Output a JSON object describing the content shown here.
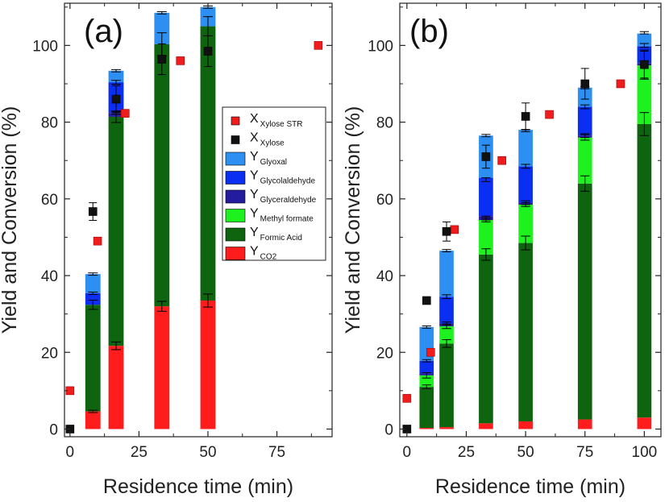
{
  "chart_data": [
    {
      "type": "bar",
      "panel_label": "(a)",
      "xlabel": "Residence time (min)",
      "ylabel": "Yield and Conversion (%)",
      "xlim": [
        -2,
        95
      ],
      "ylim": [
        -2,
        111
      ],
      "xticks": [
        0,
        25,
        50,
        75
      ],
      "yticks": [
        0,
        20,
        40,
        60,
        80,
        100
      ],
      "bar_width": 5.5,
      "stack_order": [
        "Y Formic Acid",
        "Y Methyl formate",
        "Y Glyceraldehyde",
        "Y Glycolaldehyde",
        "Y Glyoxal"
      ],
      "bars": [
        {
          "x": 8.3,
          "CO2": 4.6,
          "segments": [
            27.8,
            0,
            0,
            3.0,
            5.0
          ],
          "errors": [
            {
              "y": 4.6,
              "err": 0.3
            },
            {
              "y": 32.4,
              "err": 1.2
            },
            {
              "y": 35.4,
              "err": 0.3
            },
            {
              "y": 40.4,
              "err": 0.3
            }
          ]
        },
        {
          "x": 16.7,
          "CO2": 21.7,
          "segments": [
            59.7,
            0,
            1.0,
            8.0,
            3.0
          ],
          "errors": [
            {
              "y": 21.7,
              "err": 1.0
            },
            {
              "y": 81.4,
              "err": 1.5
            },
            {
              "y": 82.4,
              "err": 0.3
            },
            {
              "y": 90.4,
              "err": 0.5
            },
            {
              "y": 93.4,
              "err": 0.3
            }
          ]
        },
        {
          "x": 33.3,
          "CO2": 32.0,
          "segments": [
            68.3,
            0,
            0,
            0,
            8.2
          ],
          "errors": [
            {
              "y": 32.0,
              "err": 1.3
            },
            {
              "y": 100.3,
              "err": 3.0
            },
            {
              "y": 108.5,
              "err": 0.3
            }
          ]
        },
        {
          "x": 50.0,
          "CO2": 33.5,
          "segments": [
            71.5,
            0,
            0,
            0,
            5.0
          ],
          "errors": [
            {
              "y": 33.5,
              "err": 1.7
            },
            {
              "y": 105.0,
              "err": 2.5
            },
            {
              "y": 110.0,
              "err": 0.3
            }
          ]
        }
      ],
      "series": [
        {
          "name": "X Xylose STR",
          "marker": "square",
          "color": "#ee1c1c",
          "points": [
            {
              "x": 0,
              "y": 10,
              "err": 0
            },
            {
              "x": 10,
              "y": 49,
              "err": 0
            },
            {
              "x": 20,
              "y": 82.3,
              "err": 0
            },
            {
              "x": 40,
              "y": 96,
              "err": 0
            },
            {
              "x": 90,
              "y": 100,
              "err": 0
            }
          ]
        },
        {
          "name": "X Xylose",
          "marker": "square",
          "color": "#111111",
          "points": [
            {
              "x": 0,
              "y": 0,
              "err": 0
            },
            {
              "x": 8.3,
              "y": 56.7,
              "err": 2.3
            },
            {
              "x": 16.7,
              "y": 86,
              "err": 3.5
            },
            {
              "x": 33.3,
              "y": 96.4,
              "err": 4.0
            },
            {
              "x": 50,
              "y": 98.5,
              "err": 4.0
            }
          ]
        }
      ]
    },
    {
      "type": "bar",
      "panel_label": "(b)",
      "xlabel": "Residence time (min)",
      "ylabel": "Yield and Conversion (%)",
      "xlim": [
        -3,
        107
      ],
      "ylim": [
        -2,
        111
      ],
      "xticks": [
        0,
        25,
        50,
        75,
        100
      ],
      "yticks": [
        0,
        20,
        40,
        60,
        80,
        100
      ],
      "bar_width": 6,
      "stack_order": [
        "Y Formic Acid",
        "Y Methyl formate",
        "Y Glyceraldehyde",
        "Y Glycolaldehyde",
        "Y Glyoxal"
      ],
      "bars": [
        {
          "x": 8.3,
          "CO2": 0.3,
          "segments": [
            10.7,
            3.0,
            0.5,
            3.3,
            8.8
          ],
          "errors": [
            {
              "y": 11.0,
              "err": 0.5
            },
            {
              "y": 14.0,
              "err": 0.7
            },
            {
              "y": 17.8,
              "err": 0.3
            },
            {
              "y": 26.6,
              "err": 0.3
            }
          ]
        },
        {
          "x": 16.7,
          "CO2": 0.5,
          "segments": [
            21.8,
            4.5,
            0.7,
            7.0,
            12.0
          ],
          "errors": [
            {
              "y": 22.3,
              "err": 1.0
            },
            {
              "y": 26.8,
              "err": 0.6
            },
            {
              "y": 27.5,
              "err": 0.4
            },
            {
              "y": 34.5,
              "err": 0.5
            },
            {
              "y": 46.5,
              "err": 0.3
            }
          ]
        },
        {
          "x": 33.3,
          "CO2": 1.5,
          "segments": [
            44.0,
            9.0,
            1.0,
            10.0,
            11.0
          ],
          "errors": [
            {
              "y": 45.5,
              "err": 1.5
            },
            {
              "y": 54.5,
              "err": 0.5
            },
            {
              "y": 55.0,
              "err": 0.5
            },
            {
              "y": 65.0,
              "err": 0.5
            },
            {
              "y": 76.5,
              "err": 0.3
            }
          ]
        },
        {
          "x": 50.0,
          "CO2": 2.0,
          "segments": [
            46.5,
            10.0,
            0.5,
            9.5,
            9.5
          ],
          "errors": [
            {
              "y": 48.5,
              "err": 1.8
            },
            {
              "y": 58.5,
              "err": 0.5
            },
            {
              "y": 59.0,
              "err": 0.5
            },
            {
              "y": 68.5,
              "err": 0.5
            },
            {
              "y": 77.8,
              "err": 0.3
            }
          ]
        },
        {
          "x": 75.0,
          "CO2": 2.5,
          "segments": [
            61.5,
            12.0,
            0.5,
            7.5,
            5.0
          ],
          "errors": [
            {
              "y": 64.0,
              "err": 2.0
            },
            {
              "y": 76.0,
              "err": 0.7
            },
            {
              "y": 76.5,
              "err": 0.5
            },
            {
              "y": 84.0,
              "err": 0.5
            },
            {
              "y": 89.0,
              "err": 0.3
            }
          ]
        },
        {
          "x": 100.0,
          "CO2": 3.0,
          "segments": [
            76.5,
            15.3,
            0.5,
            4.5,
            3.3
          ],
          "errors": [
            {
              "y": 79.5,
              "err": 3.0
            },
            {
              "y": 95.0,
              "err": 3.8
            },
            {
              "y": 95.5,
              "err": 0.5
            },
            {
              "y": 100.0,
              "err": 0.5
            },
            {
              "y": 103.3,
              "err": 0.3
            }
          ]
        }
      ],
      "series": [
        {
          "name": "X Xylose STR",
          "marker": "square",
          "color": "#ee1c1c",
          "points": [
            {
              "x": 0,
              "y": 8,
              "err": 0
            },
            {
              "x": 10,
              "y": 20,
              "err": 0
            },
            {
              "x": 20,
              "y": 52,
              "err": 0
            },
            {
              "x": 40,
              "y": 70,
              "err": 0
            },
            {
              "x": 60,
              "y": 82,
              "err": 0
            },
            {
              "x": 90,
              "y": 90,
              "err": 0
            }
          ]
        },
        {
          "name": "X Xylose",
          "marker": "square",
          "color": "#111111",
          "points": [
            {
              "x": 0,
              "y": 0,
              "err": 0
            },
            {
              "x": 8.3,
              "y": 33.5,
              "err": 0.8
            },
            {
              "x": 16.7,
              "y": 51.5,
              "err": 2.5
            },
            {
              "x": 33.3,
              "y": 71,
              "err": 3.0
            },
            {
              "x": 50,
              "y": 81.5,
              "err": 3.5
            },
            {
              "x": 75,
              "y": 90,
              "err": 4.0
            },
            {
              "x": 100,
              "y": 95,
              "err": 3.5
            }
          ]
        }
      ]
    }
  ],
  "legend": {
    "location": "panel-a right",
    "entries": [
      {
        "main": "X",
        "sub": "Xylose STR",
        "kind": "marker",
        "color": "#ee1c1c"
      },
      {
        "main": "X",
        "sub": "Xylose",
        "kind": "marker",
        "color": "#111111"
      },
      {
        "main": "Y",
        "sub": "Glyoxal",
        "kind": "bar",
        "color": "#2e8ff2"
      },
      {
        "main": "Y",
        "sub": "Glycolaldehyde",
        "kind": "bar",
        "color": "#0a2ff2"
      },
      {
        "main": "Y",
        "sub": "Glyceraldehyde",
        "kind": "bar",
        "color": "#241c9e"
      },
      {
        "main": "Y",
        "sub": "Methyl formate",
        "kind": "bar",
        "color": "#1ef21e"
      },
      {
        "main": "Y",
        "sub": "Formic Acid",
        "kind": "bar",
        "color": "#0f6410"
      },
      {
        "main": "Y",
        "sub": "CO2",
        "kind": "bar",
        "color": "#ff1c1c"
      }
    ]
  },
  "colors": {
    "CO2": "#ff1c1c",
    "Formic Acid": "#0f6410",
    "Methyl formate": "#1ef21e",
    "Glyceraldehyde": "#241c9e",
    "Glycolaldehyde": "#0a2ff2",
    "Glyoxal": "#2e8ff2"
  }
}
